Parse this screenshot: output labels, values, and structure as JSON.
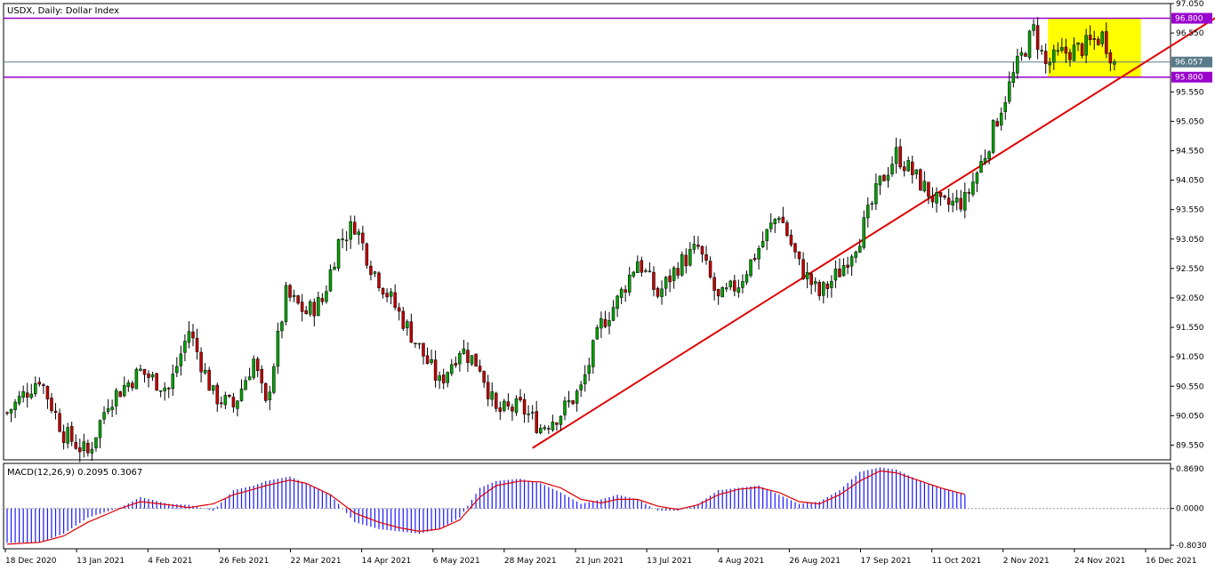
{
  "chart_title": "USDX, Daily:  Dollar Index",
  "macd_label": "MACD(12,26,9) 0.2095 0.3067",
  "price_axis_labels": [
    "97.050",
    "96.550",
    "95.550",
    "95.050",
    "94.550",
    "94.050",
    "93.550",
    "93.050",
    "92.550",
    "92.050",
    "91.550",
    "91.050",
    "90.550",
    "90.050",
    "89.550"
  ],
  "macd_axis_labels": [
    "0.8690",
    "0.0000",
    "-0.8030"
  ],
  "current_price_label": "96.057",
  "level_labels": [
    "96.800",
    "95.800"
  ],
  "colors": {
    "bull_candle": "#00a000",
    "bear_candle": "#c00000",
    "wick": "#000000",
    "level_line": "#9900cc",
    "trendline": "#e00000",
    "range_box": "#ffff00",
    "macd_hist": "#1818ff",
    "macd_signal": "#e00000",
    "current_price_line": "#5a7a8a"
  },
  "chart_data": {
    "type": "candlestick",
    "title": "USDX, Daily:  Dollar Index",
    "x_tick_labels": [
      "18 Dec 2020",
      "13 Jan 2021",
      "4 Feb 2021",
      "26 Feb 2021",
      "22 Mar 2021",
      "14 Apr 2021",
      "6 May 2021",
      "28 May 2021",
      "21 Jun 2021",
      "13 Jul 2021",
      "4 Aug 2021",
      "26 Aug 2021",
      "17 Sep 2021",
      "11 Oct 2021",
      "2 Nov 2021",
      "24 Nov 2021",
      "16 Dec 2021"
    ],
    "ylim": [
      89.3,
      97.05
    ],
    "close_path": [
      [
        0,
        90.1
      ],
      [
        8,
        90.7
      ],
      [
        14,
        89.75
      ],
      [
        20,
        89.4
      ],
      [
        25,
        90.3
      ],
      [
        33,
        90.8
      ],
      [
        40,
        90.5
      ],
      [
        45,
        91.5
      ],
      [
        51,
        90.4
      ],
      [
        56,
        90.2
      ],
      [
        61,
        91.0
      ],
      [
        64,
        90.2
      ],
      [
        69,
        92.1
      ],
      [
        74,
        91.8
      ],
      [
        78,
        92.0
      ],
      [
        82,
        93.0
      ],
      [
        86,
        93.3
      ],
      [
        90,
        92.6
      ],
      [
        96,
        91.9
      ],
      [
        102,
        91.2
      ],
      [
        107,
        90.6
      ],
      [
        112,
        91.2
      ],
      [
        117,
        90.9
      ],
      [
        121,
        90.1
      ],
      [
        127,
        90.2
      ],
      [
        132,
        89.85
      ],
      [
        137,
        90.1
      ],
      [
        142,
        90.5
      ],
      [
        147,
        91.6
      ],
      [
        151,
        92.0
      ],
      [
        156,
        92.7
      ],
      [
        161,
        92.1
      ],
      [
        166,
        92.6
      ],
      [
        171,
        92.9
      ],
      [
        176,
        92.0
      ],
      [
        181,
        92.3
      ],
      [
        186,
        92.9
      ],
      [
        191,
        93.5
      ],
      [
        196,
        92.6
      ],
      [
        201,
        92.1
      ],
      [
        206,
        92.5
      ],
      [
        211,
        93.1
      ],
      [
        216,
        94.0
      ],
      [
        220,
        94.5
      ],
      [
        226,
        94.0
      ],
      [
        231,
        93.6
      ],
      [
        237,
        93.7
      ],
      [
        242,
        94.5
      ],
      [
        246,
        95.3
      ],
      [
        250,
        96.0
      ],
      [
        254,
        96.6
      ],
      [
        257,
        96.0
      ],
      [
        261,
        96.2
      ],
      [
        266,
        96.3
      ],
      [
        271,
        96.5
      ],
      [
        274,
        96.057
      ]
    ],
    "macd_hist_path": [
      [
        0,
        -0.75
      ],
      [
        8,
        -0.75
      ],
      [
        14,
        -0.55
      ],
      [
        20,
        -0.2
      ],
      [
        28,
        0.02
      ],
      [
        33,
        0.25
      ],
      [
        40,
        0.1
      ],
      [
        45,
        0.08
      ],
      [
        51,
        -0.05
      ],
      [
        56,
        0.4
      ],
      [
        61,
        0.5
      ],
      [
        64,
        0.6
      ],
      [
        70,
        0.7
      ],
      [
        74,
        0.55
      ],
      [
        80,
        0.3
      ],
      [
        86,
        -0.3
      ],
      [
        92,
        -0.45
      ],
      [
        97,
        -0.5
      ],
      [
        102,
        -0.55
      ],
      [
        107,
        -0.45
      ],
      [
        112,
        -0.2
      ],
      [
        117,
        0.45
      ],
      [
        121,
        0.6
      ],
      [
        127,
        0.65
      ],
      [
        132,
        0.55
      ],
      [
        137,
        0.35
      ],
      [
        142,
        0.1
      ],
      [
        147,
        0.2
      ],
      [
        151,
        0.3
      ],
      [
        156,
        0.2
      ],
      [
        161,
        -0.05
      ],
      [
        166,
        -0.05
      ],
      [
        171,
        0.1
      ],
      [
        176,
        0.4
      ],
      [
        181,
        0.45
      ],
      [
        186,
        0.5
      ],
      [
        191,
        0.3
      ],
      [
        196,
        0.1
      ],
      [
        201,
        0.15
      ],
      [
        206,
        0.4
      ],
      [
        211,
        0.8
      ],
      [
        216,
        0.9
      ],
      [
        220,
        0.85
      ],
      [
        226,
        0.6
      ],
      [
        231,
        0.45
      ],
      [
        237,
        0.3
      ]
    ],
    "macd_signal_path": [
      [
        0,
        -0.78
      ],
      [
        8,
        -0.74
      ],
      [
        14,
        -0.6
      ],
      [
        20,
        -0.3
      ],
      [
        28,
        0.0
      ],
      [
        33,
        0.15
      ],
      [
        40,
        0.08
      ],
      [
        45,
        0.02
      ],
      [
        51,
        0.1
      ],
      [
        56,
        0.3
      ],
      [
        61,
        0.42
      ],
      [
        64,
        0.5
      ],
      [
        70,
        0.62
      ],
      [
        74,
        0.55
      ],
      [
        80,
        0.3
      ],
      [
        86,
        -0.1
      ],
      [
        92,
        -0.3
      ],
      [
        97,
        -0.42
      ],
      [
        102,
        -0.5
      ],
      [
        107,
        -0.45
      ],
      [
        112,
        -0.25
      ],
      [
        117,
        0.25
      ],
      [
        121,
        0.5
      ],
      [
        127,
        0.6
      ],
      [
        132,
        0.58
      ],
      [
        137,
        0.45
      ],
      [
        142,
        0.2
      ],
      [
        147,
        0.12
      ],
      [
        151,
        0.2
      ],
      [
        156,
        0.2
      ],
      [
        161,
        0.05
      ],
      [
        166,
        -0.02
      ],
      [
        171,
        0.08
      ],
      [
        176,
        0.3
      ],
      [
        181,
        0.42
      ],
      [
        186,
        0.46
      ],
      [
        191,
        0.35
      ],
      [
        196,
        0.15
      ],
      [
        201,
        0.1
      ],
      [
        206,
        0.3
      ],
      [
        211,
        0.6
      ],
      [
        216,
        0.82
      ],
      [
        220,
        0.78
      ],
      [
        226,
        0.6
      ],
      [
        231,
        0.45
      ],
      [
        237,
        0.31
      ]
    ],
    "levels": [
      96.8,
      95.8
    ],
    "current_price": 96.057,
    "range_box": {
      "x_start": 258,
      "x_end": 281,
      "y_top": 96.8,
      "y_bottom": 95.8
    },
    "trendline": {
      "points": [
        [
          130,
          89.5
        ],
        [
          300,
          96.85
        ]
      ]
    }
  }
}
